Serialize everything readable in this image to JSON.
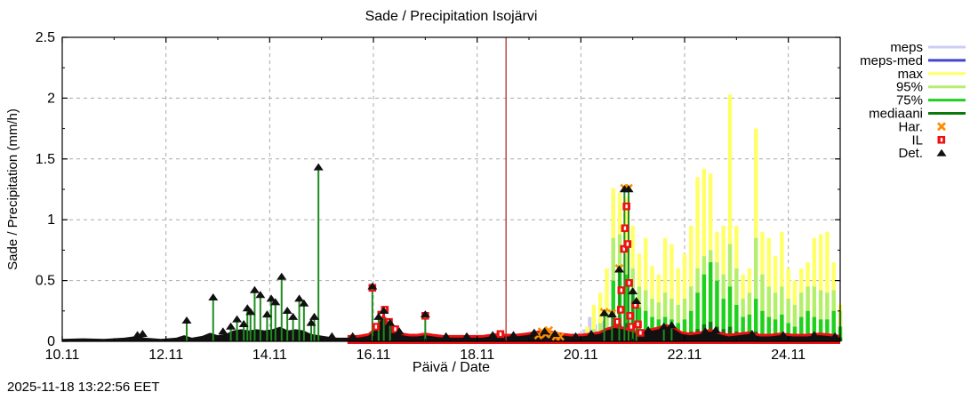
{
  "footer": {
    "timestamp": "2025-11-18 13:22:56 EET"
  },
  "legend": {
    "items": [
      {
        "label": "meps",
        "type": "line",
        "color": "#ccccf7"
      },
      {
        "label": "meps-med",
        "type": "line",
        "color": "#4444cc"
      },
      {
        "label": "max",
        "type": "line",
        "color": "#ffff66"
      },
      {
        "label": "95%",
        "type": "line",
        "color": "#b3ef6d"
      },
      {
        "label": "75%",
        "type": "line",
        "color": "#1fd01f"
      },
      {
        "label": "mediaani",
        "type": "line",
        "color": "#0a7a0a"
      },
      {
        "label": "Har.",
        "type": "x",
        "color": "#ff8c00"
      },
      {
        "label": "IL",
        "type": "square",
        "color": "#ee1111"
      },
      {
        "label": "Det.",
        "type": "triangle",
        "color": "#111111"
      }
    ]
  },
  "chart_data": {
    "type": "bar",
    "title": "Sade / Precipitation  Isojärvi",
    "xlabel": "Päivä / Date",
    "ylabel": "Sade / Precipitation (mm/h)",
    "ylim": [
      0,
      2.5
    ],
    "yticks": [
      {
        "v": 0,
        "label": "0"
      },
      {
        "v": 0.5,
        "label": "0.5"
      },
      {
        "v": 1,
        "label": "1"
      },
      {
        "v": 1.5,
        "label": "1.5"
      },
      {
        "v": 2,
        "label": "2"
      },
      {
        "v": 2.5,
        "label": "2.5"
      }
    ],
    "xlim_days": [
      0,
      15
    ],
    "xticks": [
      {
        "t": 0,
        "label": "10.11"
      },
      {
        "t": 2,
        "label": "12.11"
      },
      {
        "t": 4,
        "label": "14.11"
      },
      {
        "t": 6,
        "label": "16.11"
      },
      {
        "t": 8,
        "label": "18.11"
      },
      {
        "t": 10,
        "label": "20.11"
      },
      {
        "t": 12,
        "label": "22.11"
      },
      {
        "t": 14,
        "label": "24.11"
      }
    ],
    "grid": "dashed",
    "legend_position": "right-outside",
    "now_marker": {
      "t": 8.557,
      "color": "#b03030"
    },
    "colors": {
      "meps": "#ccccf7",
      "meps_med": "#4444cc",
      "max": "#ffff66",
      "p95": "#b3ef6d",
      "p75": "#1fd01f",
      "median": "#0a7a0a",
      "har": "#ff8c00",
      "il": "#ee1111",
      "det": "#111111",
      "det_stem": "#1e8c1e",
      "grid": "#aaaaaa",
      "zero_line": "#cccccc"
    },
    "meps_bars": [
      [
        9.98,
        0.07
      ],
      [
        10.06,
        0.1
      ],
      [
        10.17,
        0.2
      ],
      [
        10.28,
        0.14
      ],
      [
        10.4,
        0.17
      ],
      [
        10.5,
        0.08
      ],
      [
        10.6,
        0.05
      ]
    ],
    "meps_med_bars": [
      [
        10.12,
        0.12
      ],
      [
        10.46,
        0.15
      ]
    ],
    "forecast": {
      "t_start": 10.125,
      "t_step": 0.125,
      "max": [
        0.12,
        0.3,
        0.4,
        0.6,
        1.26,
        1.22,
        1.18,
        0.95,
        0.72,
        0.85,
        0.62,
        0.55,
        0.85,
        0.8,
        0.6,
        0.72,
        0.95,
        1.35,
        1.42,
        1.38,
        0.9,
        0.95,
        2.03,
        0.95,
        0.55,
        0.6,
        1.75,
        0.9,
        0.85,
        0.7,
        0.9,
        0.6,
        0.5,
        0.6,
        0.65,
        0.85,
        0.88,
        0.9,
        0.65,
        0.3
      ],
      "p95": [
        0.05,
        0.1,
        0.15,
        0.25,
        0.85,
        0.88,
        0.72,
        0.6,
        0.45,
        0.42,
        0.35,
        0.32,
        0.4,
        0.35,
        0.3,
        0.35,
        0.45,
        0.6,
        0.7,
        0.75,
        0.65,
        0.55,
        0.8,
        0.6,
        0.35,
        0.4,
        0.85,
        0.55,
        0.45,
        0.4,
        0.45,
        0.35,
        0.3,
        0.4,
        0.45,
        0.45,
        0.42,
        0.4,
        0.42,
        0.25
      ],
      "p75": [
        0.02,
        0.04,
        0.05,
        0.1,
        0.5,
        0.62,
        0.55,
        0.42,
        0.28,
        0.25,
        0.2,
        0.18,
        0.2,
        0.18,
        0.15,
        0.18,
        0.25,
        0.4,
        0.55,
        0.65,
        0.5,
        0.35,
        0.45,
        0.3,
        0.2,
        0.22,
        0.35,
        0.25,
        0.2,
        0.18,
        0.22,
        0.15,
        0.12,
        0.2,
        0.25,
        0.2,
        0.18,
        0.18,
        0.25,
        0.12
      ],
      "median": [
        0.01,
        0.02,
        0.02,
        0.03,
        0.1,
        0.14,
        0.15,
        0.12,
        0.08,
        0.06,
        0.05,
        0.05,
        0.06,
        0.06,
        0.05,
        0.05,
        0.08,
        0.1,
        0.14,
        0.16,
        0.12,
        0.1,
        0.12,
        0.08,
        0.06,
        0.06,
        0.08,
        0.06,
        0.05,
        0.05,
        0.05,
        0.04,
        0.04,
        0.05,
        0.05,
        0.04,
        0.04,
        0.04,
        0.05,
        0.03
      ]
    },
    "det_band": [
      [
        0,
        0.02
      ],
      [
        0.4,
        0.025
      ],
      [
        0.8,
        0.02
      ],
      [
        1.2,
        0.03
      ],
      [
        1.45,
        0.045
      ],
      [
        1.6,
        0.03
      ],
      [
        1.9,
        0.02
      ],
      [
        2.2,
        0.03
      ],
      [
        2.35,
        0.05
      ],
      [
        2.5,
        0.03
      ],
      [
        2.7,
        0.045
      ],
      [
        2.85,
        0.07
      ],
      [
        3.0,
        0.05
      ],
      [
        3.15,
        0.06
      ],
      [
        3.3,
        0.09
      ],
      [
        3.45,
        0.1
      ],
      [
        3.6,
        0.09
      ],
      [
        3.75,
        0.1
      ],
      [
        3.9,
        0.09
      ],
      [
        4.05,
        0.1
      ],
      [
        4.2,
        0.12
      ],
      [
        4.35,
        0.09
      ],
      [
        4.5,
        0.1
      ],
      [
        4.65,
        0.09
      ],
      [
        4.8,
        0.06
      ],
      [
        4.95,
        0.05
      ],
      [
        5.1,
        0.04
      ],
      [
        5.3,
        0.03
      ],
      [
        5.5,
        0.03
      ],
      [
        5.7,
        0.03
      ],
      [
        5.9,
        0.045
      ],
      [
        6.05,
        0.1
      ],
      [
        6.18,
        0.2
      ],
      [
        6.28,
        0.16
      ],
      [
        6.4,
        0.09
      ],
      [
        6.55,
        0.05
      ],
      [
        6.7,
        0.04
      ],
      [
        6.85,
        0.04
      ],
      [
        7.0,
        0.05
      ],
      [
        7.15,
        0.04
      ],
      [
        7.35,
        0.03
      ],
      [
        7.6,
        0.03
      ],
      [
        7.85,
        0.03
      ],
      [
        8.1,
        0.03
      ],
      [
        8.35,
        0.045
      ],
      [
        8.55,
        0.04
      ],
      [
        8.75,
        0.04
      ],
      [
        8.95,
        0.05
      ],
      [
        9.15,
        0.065
      ],
      [
        9.3,
        0.075
      ],
      [
        9.45,
        0.065
      ],
      [
        9.6,
        0.05
      ],
      [
        9.8,
        0.04
      ],
      [
        10.0,
        0.04
      ],
      [
        10.2,
        0.05
      ],
      [
        10.35,
        0.06
      ],
      [
        10.5,
        0.09
      ],
      [
        10.65,
        0.11
      ],
      [
        10.8,
        0.1
      ],
      [
        10.95,
        0.08
      ],
      [
        11.1,
        0.06
      ],
      [
        11.3,
        0.08
      ],
      [
        11.5,
        0.1
      ],
      [
        11.65,
        0.12
      ],
      [
        11.8,
        0.1
      ],
      [
        11.95,
        0.06
      ],
      [
        12.1,
        0.05
      ],
      [
        12.3,
        0.06
      ],
      [
        12.5,
        0.08
      ],
      [
        12.65,
        0.06
      ],
      [
        12.85,
        0.04
      ],
      [
        13.05,
        0.05
      ],
      [
        13.25,
        0.06
      ],
      [
        13.45,
        0.04
      ],
      [
        13.65,
        0.04
      ],
      [
        13.85,
        0.05
      ],
      [
        14.1,
        0.04
      ],
      [
        14.35,
        0.04
      ],
      [
        14.6,
        0.05
      ],
      [
        14.85,
        0.04
      ],
      [
        15.0,
        0.03
      ]
    ],
    "il_band_start": 5.5,
    "det_points": [
      [
        1.45,
        0.05
      ],
      [
        1.55,
        0.06
      ],
      [
        2.4,
        0.17
      ],
      [
        2.91,
        0.36
      ],
      [
        3.1,
        0.08
      ],
      [
        3.25,
        0.12
      ],
      [
        3.37,
        0.18
      ],
      [
        3.5,
        0.14
      ],
      [
        3.57,
        0.27
      ],
      [
        3.63,
        0.24
      ],
      [
        3.71,
        0.42
      ],
      [
        3.82,
        0.38
      ],
      [
        3.95,
        0.22
      ],
      [
        4.03,
        0.35
      ],
      [
        4.11,
        0.32
      ],
      [
        4.23,
        0.53
      ],
      [
        4.34,
        0.25
      ],
      [
        4.45,
        0.2
      ],
      [
        4.57,
        0.35
      ],
      [
        4.66,
        0.31
      ],
      [
        4.8,
        0.15
      ],
      [
        4.86,
        0.2
      ],
      [
        4.94,
        1.43
      ],
      [
        5.2,
        0.04
      ],
      [
        5.6,
        0.04
      ],
      [
        5.98,
        0.45
      ],
      [
        6.1,
        0.2
      ],
      [
        6.2,
        0.25
      ],
      [
        6.32,
        0.15
      ],
      [
        6.5,
        0.08
      ],
      [
        7.0,
        0.22
      ],
      [
        7.4,
        0.04
      ],
      [
        7.8,
        0.04
      ],
      [
        8.3,
        0.05
      ],
      [
        8.7,
        0.05
      ],
      [
        9.1,
        0.07
      ],
      [
        9.3,
        0.08
      ],
      [
        9.5,
        0.06
      ],
      [
        9.9,
        0.04
      ],
      [
        10.2,
        0.06
      ],
      [
        10.45,
        0.23
      ],
      [
        10.6,
        0.22
      ],
      [
        10.74,
        0.59
      ],
      [
        10.84,
        1.25
      ],
      [
        10.92,
        1.25
      ],
      [
        11.0,
        0.41
      ],
      [
        11.07,
        0.33
      ],
      [
        11.3,
        0.09
      ],
      [
        11.6,
        0.12
      ],
      [
        11.75,
        0.13
      ],
      [
        12.4,
        0.08
      ],
      [
        12.6,
        0.09
      ],
      [
        13.3,
        0.06
      ],
      [
        13.9,
        0.05
      ],
      [
        14.5,
        0.05
      ],
      [
        14.9,
        0.04
      ]
    ],
    "il_points": [
      [
        5.98,
        0.44
      ],
      [
        6.05,
        0.12
      ],
      [
        6.15,
        0.22
      ],
      [
        6.22,
        0.26
      ],
      [
        6.3,
        0.16
      ],
      [
        6.42,
        0.1
      ],
      [
        7.0,
        0.21
      ],
      [
        8.45,
        0.06
      ],
      [
        10.7,
        0.16
      ],
      [
        10.77,
        0.26
      ],
      [
        10.78,
        0.42
      ],
      [
        10.83,
        0.76
      ],
      [
        10.85,
        0.93
      ],
      [
        10.88,
        1.11
      ],
      [
        10.9,
        0.8
      ],
      [
        10.93,
        0.48
      ],
      [
        10.95,
        0.21
      ],
      [
        10.97,
        0.12
      ],
      [
        11.05,
        0.3
      ],
      [
        11.1,
        0.14
      ],
      [
        11.15,
        0.07
      ]
    ],
    "har_points": [
      [
        9.18,
        0.05
      ],
      [
        9.25,
        0.08
      ],
      [
        9.32,
        0.06
      ],
      [
        9.38,
        0.09
      ],
      [
        9.44,
        0.06
      ],
      [
        9.52,
        0.04
      ],
      [
        9.6,
        0.04
      ],
      [
        10.45,
        0.24
      ],
      [
        10.6,
        0.23
      ],
      [
        10.74,
        0.6
      ],
      [
        10.84,
        1.26
      ],
      [
        10.92,
        1.26
      ]
    ]
  }
}
